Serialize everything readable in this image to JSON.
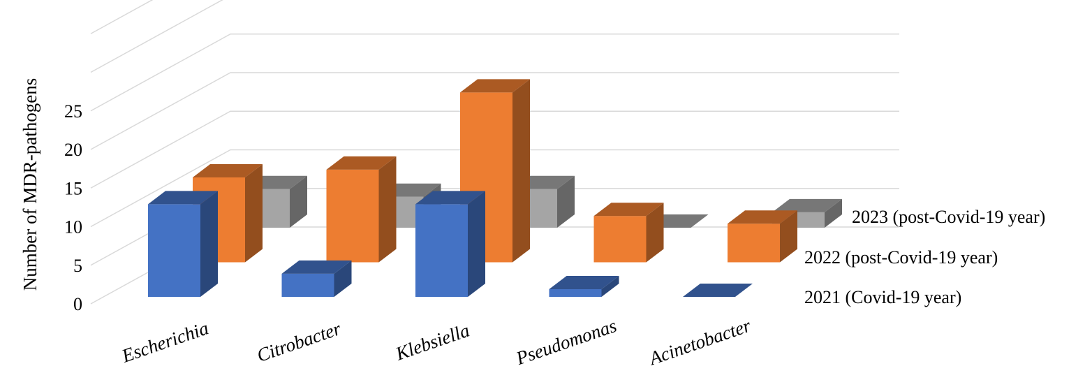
{
  "chart_data": {
    "type": "bar",
    "style": "3d-column",
    "ylabel": "Number of MDR-pathogens",
    "ylim": [
      0,
      25
    ],
    "yticks": [
      0,
      5,
      10,
      15,
      20,
      25
    ],
    "grid": true,
    "legend": "none",
    "categories": [
      "Escherichia",
      "Citrobacter",
      "Klebsiella",
      "Pseudomonas",
      "Acinetobacter"
    ],
    "series": [
      {
        "name": "2021 (Covid-19 year)",
        "values": [
          12,
          3,
          12,
          1,
          0
        ],
        "color": "#4472C4"
      },
      {
        "name": "2022 (post-Covid-19 year)",
        "values": [
          11,
          12,
          22,
          6,
          5
        ],
        "color": "#ED7D31"
      },
      {
        "name": "2023 (post-Covid-19 year)",
        "values": [
          5,
          4,
          5,
          0,
          2
        ],
        "color": "#A5A5A5"
      }
    ]
  }
}
